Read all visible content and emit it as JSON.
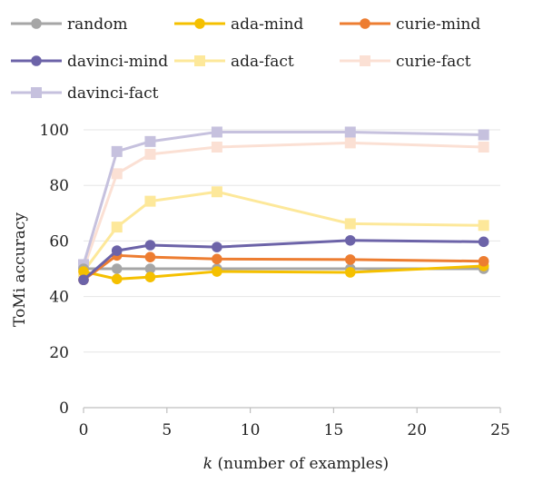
{
  "chart_data": {
    "type": "line",
    "xlabel_italic": "k",
    "xlabel_rest": " (number of examples)",
    "ylabel": "ToMi accuracy",
    "xlim": [
      0,
      25
    ],
    "ylim": [
      0,
      100
    ],
    "xticks": [
      0,
      5,
      10,
      15,
      20,
      25
    ],
    "yticks": [
      0,
      20,
      40,
      60,
      80,
      100
    ],
    "grid": "horizontal",
    "legend_position": "top",
    "x": [
      0,
      2,
      4,
      8,
      16,
      24
    ],
    "series": [
      {
        "name": "random",
        "marker": "circle",
        "color": "#a6a6a6",
        "values": [
          50,
          50,
          50,
          50,
          50,
          50
        ]
      },
      {
        "name": "ada-mind",
        "marker": "circle",
        "color": "#f5c000",
        "values": [
          49,
          46.3,
          47,
          49,
          48.7,
          51
        ]
      },
      {
        "name": "curie-mind",
        "marker": "circle",
        "color": "#ed7d31",
        "values": [
          46,
          54.8,
          54.2,
          53.5,
          53.3,
          52.7
        ]
      },
      {
        "name": "davinci-mind",
        "marker": "circle",
        "color": "#6c63a8",
        "values": [
          46,
          56.5,
          58.5,
          57.8,
          60.2,
          59.7
        ]
      },
      {
        "name": "ada-fact",
        "marker": "square",
        "color": "#fde89a",
        "values": [
          49,
          65,
          74.3,
          77.7,
          66.2,
          65.6
        ]
      },
      {
        "name": "curie-fact",
        "marker": "square",
        "color": "#fbe0d4",
        "values": [
          50,
          84.2,
          91.2,
          93.8,
          95.3,
          93.8
        ]
      },
      {
        "name": "davinci-fact",
        "marker": "square",
        "color": "#c6c1de",
        "values": [
          51.5,
          92.2,
          95.8,
          99.2,
          99.2,
          98.2
        ]
      }
    ]
  }
}
